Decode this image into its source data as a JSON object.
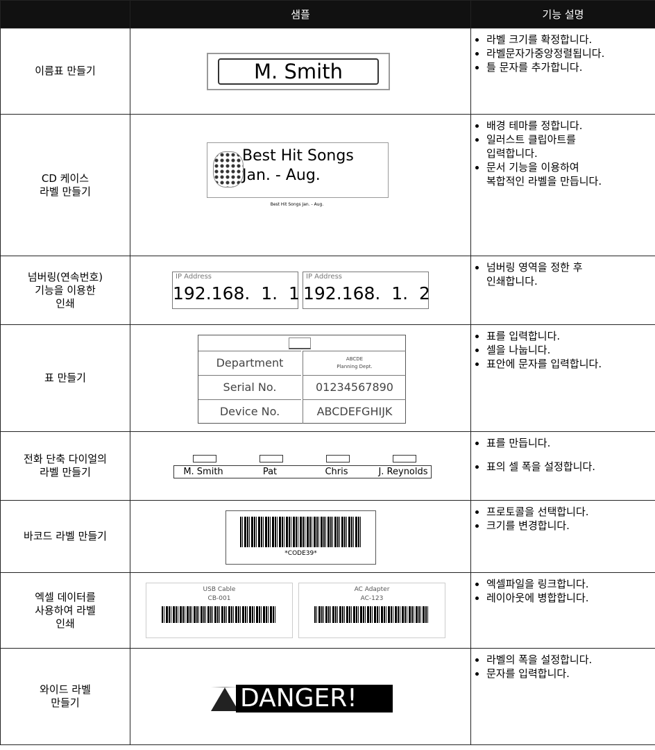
{
  "table": {
    "header": {
      "sample": "샘플",
      "description": "기능 설명"
    },
    "rows": [
      {
        "name": "이름표 만들기",
        "sample": {
          "text": "M. Smith"
        },
        "bullets": [
          "라벨 크기를 확정합니다.",
          "라벨문자가중앙정렬됩니다.",
          "틀 문자를 추가합니다."
        ]
      },
      {
        "name": "CD 케이스\n라벨 만들기",
        "sample": {
          "line1": "Best Hit Songs",
          "line2": "Jan. - Aug.",
          "small": "Best Hit Songs Jan. - Aug."
        },
        "bullets": [
          "배경 테마를 정합니다.",
          "일러스트 클립아트를\n입력합니다.",
          "문서 기능을 이용하여\n복합적인 라벨을 만듭니다."
        ]
      },
      {
        "name": "넘버링(연속번호)\n기능을 이용한\n인쇄",
        "sample": {
          "labels": [
            {
              "caption": "IP Address",
              "text": "192.168.  1.  1"
            },
            {
              "caption": "IP Address",
              "text": "192.168.  1.  2"
            }
          ]
        },
        "bullets": [
          "넘버링 영역을 정한 후\n인쇄합니다."
        ]
      },
      {
        "name": "표 만들기",
        "sample": {
          "rows": [
            [
              "Department",
              "ABCDE\nPlanning Dept."
            ],
            [
              "Serial No.",
              "01234567890"
            ],
            [
              "Device No.",
              "ABCDEFGHIJK"
            ]
          ]
        },
        "bullets": [
          "표를 입력합니다.",
          "셀을 나눕니다.",
          "표안에 문자를 입력합니다."
        ]
      },
      {
        "name": "전화 단축 다이얼의\n라벨 만들기",
        "sample": {
          "names": [
            "M. Smith",
            "Pat",
            "Chris",
            "J. Reynolds"
          ]
        },
        "bullets": [
          "표를 만듭니다.",
          "표의 셀 폭을 설정합니다."
        ]
      },
      {
        "name": "바코드 라벨 만들기",
        "sample": {
          "code": "*CODE39*"
        },
        "bullets": [
          "프로토콜을 선택합니다.",
          "크기를 변경합니다."
        ]
      },
      {
        "name": "엑셀 데이터를\n사용하여 라벨\n인쇄",
        "sample": {
          "labels": [
            {
              "line1": "USB Cable",
              "line2": "CB-001"
            },
            {
              "line1": "AC Adapter",
              "line2": "AC-123"
            }
          ]
        },
        "bullets": [
          "엑셀파일을 링크합니다.",
          "레이아웃에 병합합니다."
        ]
      },
      {
        "name": "와이드 라벨\n만들기",
        "sample": {
          "text": "DANGER!"
        },
        "bullets": [
          "라벨의 폭을 설정합니다.",
          "문자를 입력합니다."
        ]
      }
    ]
  }
}
